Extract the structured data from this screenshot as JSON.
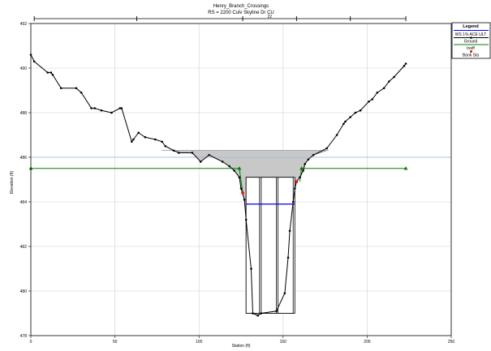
{
  "chart_data": {
    "type": "line",
    "title": "Henry_Branch_Crossings",
    "subtitle": "RS = 2200    Culv  Skyline Dr CU",
    "xlabel": "Station (ft)",
    "ylabel": "Elevation (ft)",
    "xlim": [
      0,
      250
    ],
    "ylim": [
      478,
      492
    ],
    "x_ticks": [
      0,
      50,
      100,
      150,
      200,
      250
    ],
    "y_ticks": [
      478,
      480,
      482,
      484,
      486,
      488,
      490,
      492
    ],
    "grid": true,
    "legend_position": "top-right",
    "legend": {
      "title": "Legend",
      "items": [
        {
          "label": "WS 1% ACE ULT",
          "color": "#0000ff",
          "style": "line"
        },
        {
          "label": "Ground",
          "color": "#000000",
          "style": "line-markers"
        },
        {
          "label": "Ineff",
          "color": "#008000",
          "style": "line-triangles"
        },
        {
          "label": "Bank Sta",
          "color": "#ff0000",
          "style": "marker"
        }
      ]
    },
    "top_dimension_label": "22",
    "ground": {
      "name": "Ground",
      "x": [
        0,
        2,
        10,
        12,
        13,
        18,
        27,
        30,
        36,
        38,
        42,
        48,
        53,
        54,
        60,
        61,
        64,
        68,
        74,
        78,
        80,
        85,
        88,
        96,
        101,
        106,
        114,
        118,
        121,
        124,
        125,
        127,
        128,
        131,
        132,
        135,
        137,
        146,
        151,
        153,
        154,
        156,
        157,
        158,
        160,
        162,
        163,
        165,
        168,
        176,
        182,
        186,
        187,
        190,
        193,
        196,
        201,
        203,
        206,
        210,
        213,
        216,
        222,
        223
      ],
      "y": [
        490.6,
        490.3,
        489.8,
        489.8,
        489.7,
        489.1,
        489.1,
        488.9,
        488.2,
        488.2,
        488.1,
        488.0,
        488.2,
        488.2,
        486.7,
        486.8,
        487.1,
        486.9,
        486.8,
        486.7,
        486.5,
        486.3,
        486.2,
        486.2,
        485.8,
        486.1,
        485.8,
        485.6,
        485.4,
        485.1,
        484.6,
        484.1,
        483.2,
        481.0,
        479.0,
        478.9,
        479.0,
        479.1,
        479.9,
        481.5,
        482.7,
        484.0,
        484.6,
        484.9,
        485.1,
        485.4,
        485.7,
        485.9,
        486.1,
        486.4,
        487.0,
        487.5,
        487.6,
        487.8,
        488.0,
        488.1,
        488.5,
        488.6,
        488.9,
        489.1,
        489.4,
        489.6,
        490.1,
        490.2
      ]
    },
    "water_surface": {
      "name": "WS 1% ACE ULT",
      "elevation": 483.9,
      "x": [
        128,
        157
      ]
    },
    "ineffective_areas": {
      "name": "Ineff",
      "left": {
        "x": [
          0,
          124,
          126
        ],
        "y": [
          485.5,
          485.5,
          484.4
        ]
      },
      "right": {
        "x": [
          160,
          161,
          223
        ],
        "y": [
          484.9,
          485.5,
          485.5
        ]
      }
    },
    "bank_stations": {
      "name": "Bank Sta",
      "x": [
        126,
        158
      ],
      "y": [
        484.4,
        484.9
      ]
    },
    "flow_area_region": {
      "top_elevation": 486.3,
      "x_left": 78,
      "x_right": 177
    },
    "culvert_openings": [
      {
        "x_left": 128,
        "x_right": 136,
        "bottom": 479.0,
        "top": 485.1
      },
      {
        "x_left": 137,
        "x_right": 146,
        "bottom": 479.0,
        "top": 485.1
      },
      {
        "x_left": 147,
        "x_right": 156,
        "bottom": 479.0,
        "top": 485.1
      }
    ],
    "culvert_outline": {
      "x_left": 128,
      "x_right": 157,
      "bottom": 479.0,
      "top": 485.1
    },
    "reference_line_elevation": 486.0,
    "top_dimension_ticks": [
      2,
      63,
      126,
      158,
      190,
      223
    ]
  }
}
